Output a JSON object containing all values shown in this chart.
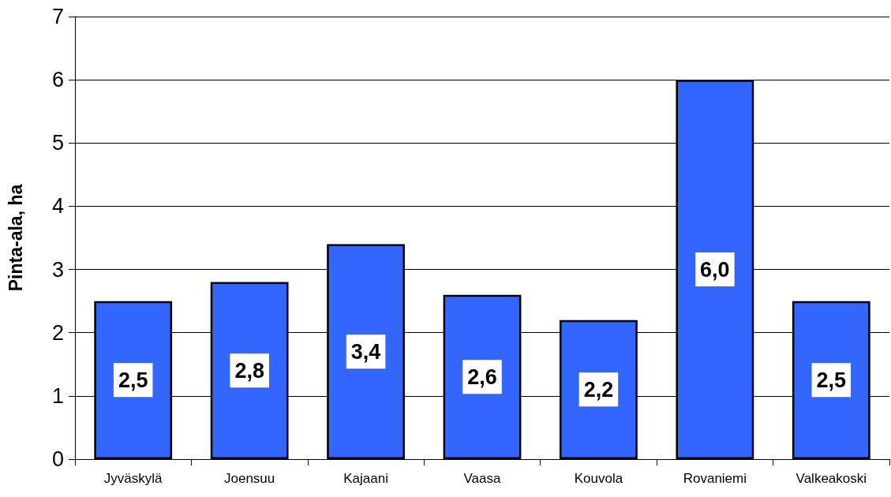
{
  "chart_data": {
    "type": "bar",
    "ylabel": "Pinta-ala, ha",
    "categories": [
      "Jyväskylä",
      "Joensuu",
      "Kajaani",
      "Vaasa",
      "Kouvola",
      "Rovaniemi",
      "Valkeakoski"
    ],
    "values": [
      2.5,
      2.8,
      3.4,
      2.6,
      2.2,
      6.0,
      2.5
    ],
    "value_labels": [
      "2,5",
      "2,8",
      "3,4",
      "2,6",
      "2,2",
      "6,0",
      "2,5"
    ],
    "color": "#3366ff",
    "ylim": [
      0,
      7
    ],
    "yticks": [
      0,
      1,
      2,
      3,
      4,
      5,
      6,
      7
    ],
    "grid": "y"
  }
}
